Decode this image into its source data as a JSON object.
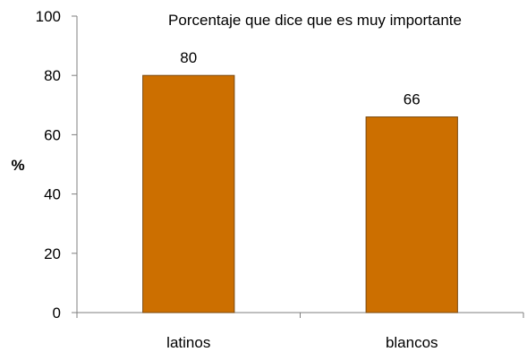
{
  "chart_data": {
    "type": "bar",
    "title": "Porcentaje que dice que es muy importante",
    "xlabel": "",
    "ylabel": "%",
    "categories": [
      "latinos",
      "blancos"
    ],
    "values": [
      80,
      66
    ],
    "data_labels": [
      "80",
      "66"
    ],
    "ylim": [
      0,
      100
    ],
    "yticks": [
      0,
      20,
      40,
      60,
      80,
      100
    ],
    "ytick_labels": [
      "0",
      "20",
      "40",
      "60",
      "80",
      "100"
    ],
    "grid": false,
    "legend": "none",
    "colors": {
      "bar_fill": "#CC6F00",
      "bar_stroke": "#7A4A12",
      "axis": "#7F7F7F",
      "text": "#000000",
      "background": "#FFFFFF"
    }
  }
}
